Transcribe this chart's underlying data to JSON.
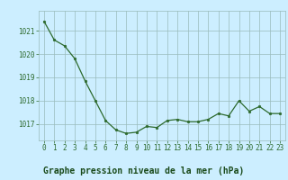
{
  "x": [
    0,
    1,
    2,
    3,
    4,
    5,
    6,
    7,
    8,
    9,
    10,
    11,
    12,
    13,
    14,
    15,
    16,
    17,
    18,
    19,
    20,
    21,
    22,
    23
  ],
  "y": [
    1021.4,
    1020.6,
    1020.35,
    1019.8,
    1018.85,
    1018.0,
    1017.15,
    1016.75,
    1016.6,
    1016.65,
    1016.9,
    1016.85,
    1017.15,
    1017.2,
    1017.1,
    1017.1,
    1017.2,
    1017.45,
    1017.35,
    1018.0,
    1017.55,
    1017.75,
    1017.45,
    1017.45
  ],
  "line_color": "#2d6a2d",
  "marker_color": "#2d6a2d",
  "bg_color": "#cceeff",
  "grid_color": "#99bbbb",
  "xlabel": "Graphe pression niveau de la mer (hPa)",
  "xlabel_color": "#1a4a1a",
  "xlabel_bg": "#44aa44",
  "ylim": [
    1016.3,
    1021.85
  ],
  "yticks": [
    1017,
    1018,
    1019,
    1020,
    1021
  ],
  "xtick_labels": [
    "0",
    "1",
    "2",
    "3",
    "4",
    "5",
    "6",
    "7",
    "8",
    "9",
    "10",
    "11",
    "12",
    "13",
    "14",
    "15",
    "16",
    "17",
    "18",
    "19",
    "20",
    "21",
    "22",
    "23"
  ],
  "tick_fontsize": 5.5,
  "label_fontsize": 7.0
}
